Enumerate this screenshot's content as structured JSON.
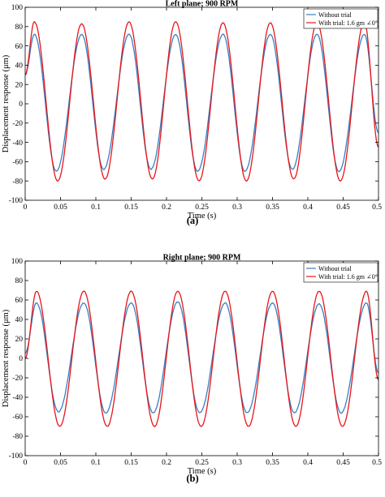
{
  "figure": {
    "panels": [
      {
        "caption": "(a)"
      },
      {
        "caption": "(b)"
      }
    ]
  },
  "colors": {
    "without_trial": "#3a7fc1",
    "with_trial": "#e8161b",
    "axes": "#000000"
  },
  "chart_data": [
    {
      "type": "line",
      "title": "Left plane; 900 RPM",
      "xlabel": "Time (s)",
      "ylabel": "Displacement response (μm)",
      "xlim": [
        0,
        0.5
      ],
      "ylim": [
        -100,
        100
      ],
      "xticks": [
        0,
        0.05,
        0.1,
        0.15,
        0.2,
        0.25,
        0.3,
        0.35,
        0.4,
        0.45,
        0.5
      ],
      "xtick_labels": [
        "0",
        "0.05",
        "0.1",
        "0.15",
        "0.2",
        "0.25",
        "0.3",
        "0.35",
        "0.4",
        "0.45",
        "0.5"
      ],
      "yticks": [
        -100,
        -80,
        -60,
        -40,
        -20,
        0,
        20,
        40,
        60,
        80,
        100
      ],
      "ytick_labels": [
        "-100",
        "-80",
        "-60",
        "-40",
        "-20",
        "0",
        "20",
        "40",
        "60",
        "80",
        "100"
      ],
      "grid": false,
      "legend_position": "top-right",
      "series": [
        {
          "name": "Without trial",
          "color": "#3a7fc1",
          "frequency_hz": 15,
          "x": [
            0,
            0.013,
            0.044,
            0.08,
            0.111,
            0.147,
            0.178,
            0.213,
            0.244,
            0.28,
            0.311,
            0.347,
            0.378,
            0.413,
            0.444,
            0.48,
            0.5
          ],
          "y": [
            30,
            72,
            -70,
            72,
            -68,
            72,
            -68,
            72,
            -70,
            72,
            -70,
            72,
            -68,
            72,
            -70,
            72,
            -30
          ]
        },
        {
          "name": "With trial: 1.6 gm ∠0°",
          "color": "#e8161b",
          "frequency_hz": 15,
          "x": [
            0,
            0.013,
            0.046,
            0.08,
            0.113,
            0.147,
            0.18,
            0.213,
            0.246,
            0.28,
            0.313,
            0.347,
            0.38,
            0.413,
            0.446,
            0.48,
            0.5
          ],
          "y": [
            30,
            85,
            -80,
            83,
            -78,
            85,
            -78,
            85,
            -80,
            84,
            -80,
            84,
            -78,
            84,
            -80,
            85,
            -45
          ]
        }
      ]
    },
    {
      "type": "line",
      "title": "Right plane; 900 RPM",
      "xlabel": "Time (s)",
      "ylabel": "Displacement response (μm)",
      "xlim": [
        0,
        0.5
      ],
      "ylim": [
        -100,
        100
      ],
      "xticks": [
        0,
        0.05,
        0.1,
        0.15,
        0.2,
        0.25,
        0.3,
        0.35,
        0.4,
        0.45,
        0.5
      ],
      "xtick_labels": [
        "0",
        "0.05",
        "0.1",
        "0.15",
        "0.2",
        "0.25",
        "0.3",
        "0.35",
        "0.4",
        "0.45",
        "0.5"
      ],
      "yticks": [
        -100,
        -80,
        -60,
        -40,
        -20,
        0,
        20,
        40,
        60,
        80,
        100
      ],
      "ytick_labels": [
        "-100",
        "-80",
        "-60",
        "-40",
        "-20",
        "0",
        "20",
        "40",
        "60",
        "80",
        "100"
      ],
      "grid": false,
      "legend_position": "top-right",
      "series": [
        {
          "name": "Without trial",
          "color": "#3a7fc1",
          "frequency_hz": 15,
          "x": [
            0,
            0.016,
            0.047,
            0.083,
            0.114,
            0.15,
            0.181,
            0.216,
            0.247,
            0.283,
            0.314,
            0.35,
            0.381,
            0.416,
            0.447,
            0.483,
            0.5
          ],
          "y": [
            5,
            57,
            -55,
            57,
            -56,
            57,
            -56,
            58,
            -56,
            57,
            -56,
            57,
            -56,
            56,
            -56,
            57,
            -15
          ]
        },
        {
          "name": "With trial: 1.6 gm ∠0°",
          "color": "#e8161b",
          "frequency_hz": 15,
          "x": [
            0,
            0.016,
            0.049,
            0.083,
            0.116,
            0.15,
            0.183,
            0.216,
            0.249,
            0.283,
            0.316,
            0.35,
            0.383,
            0.416,
            0.449,
            0.483,
            0.5
          ],
          "y": [
            0,
            69,
            -70,
            69,
            -70,
            69,
            -70,
            69,
            -70,
            69,
            -70,
            69,
            -70,
            69,
            -70,
            69,
            -22
          ]
        }
      ]
    }
  ]
}
